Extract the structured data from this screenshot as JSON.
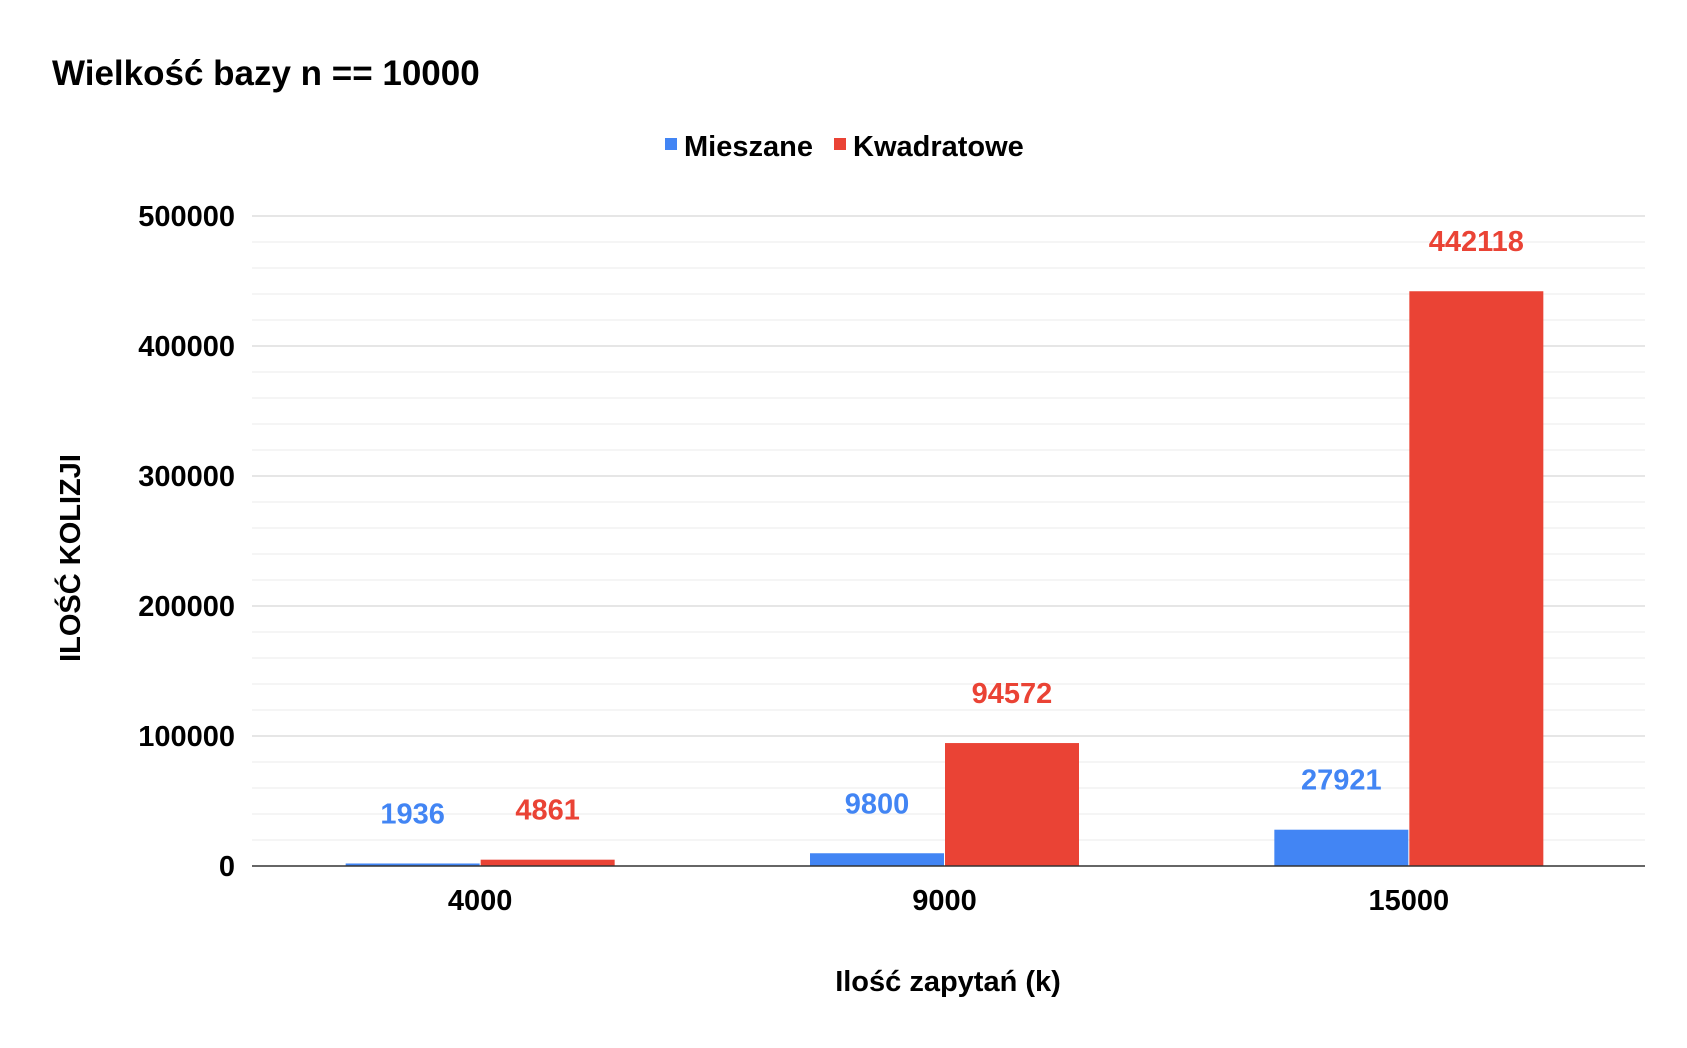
{
  "chart_data": {
    "type": "bar",
    "title": "Wielkość bazy n == 10000",
    "xlabel": "Ilość zapytań (k)",
    "ylabel": "ILOŚĆ KOLIZJI",
    "categories": [
      "4000",
      "9000",
      "15000"
    ],
    "series": [
      {
        "name": "Mieszane",
        "values": [
          1936,
          9800,
          27921
        ],
        "color": "#4285f4"
      },
      {
        "name": "Kwadratowe",
        "values": [
          4861,
          94572,
          442118
        ],
        "color": "#ea4335"
      }
    ],
    "ylim": [
      0,
      500000
    ],
    "yticks": [
      "0",
      "100000",
      "200000",
      "300000",
      "400000",
      "500000"
    ],
    "data_labels": true,
    "legend_position": "top-center",
    "grid": true
  }
}
